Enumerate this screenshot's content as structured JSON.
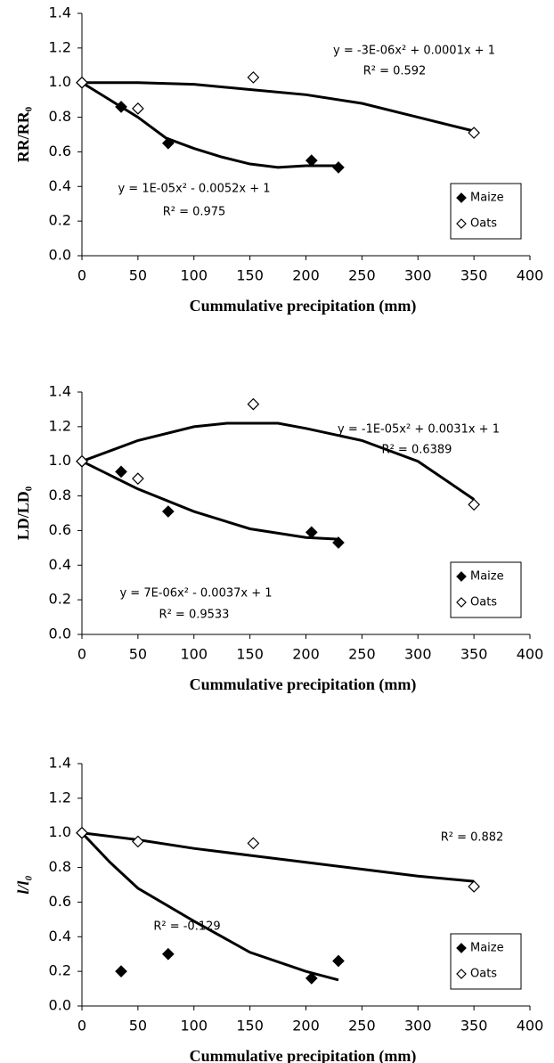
{
  "chart_data": [
    {
      "type": "scatter",
      "ylabel": "RR/RR₀",
      "xlabel": "Cummulative precipitation (mm)",
      "xlim": [
        0,
        400
      ],
      "ylim": [
        0,
        1.4
      ],
      "xticks": [
        0,
        50,
        100,
        150,
        200,
        250,
        300,
        350,
        400
      ],
      "yticks": [
        {
          "value": 0,
          "label": "0.0"
        },
        0.2,
        0.4,
        0.6,
        0.8,
        {
          "value": 1,
          "label": "1.0"
        },
        1.2,
        1.4
      ],
      "legend": "lower right",
      "annotations": [
        "y = -3E-06x² + 0.0001x + 1",
        "R² = 0.592",
        "y = 1E-05x² - 0.0052x + 1",
        "R² = 0.975"
      ],
      "series": [
        {
          "name": "Maize",
          "color": "#000000",
          "marker": "filled-diamond",
          "x": [
            0,
            35,
            77,
            205,
            229
          ],
          "values": [
            1.0,
            0.86,
            0.65,
            0.55,
            0.51
          ],
          "trend": {
            "x": [
              0,
              25,
              50,
              75,
              100,
              125,
              150,
              175,
              200,
              229
            ],
            "y": [
              1.0,
              0.9,
              0.8,
              0.68,
              0.62,
              0.57,
              0.53,
              0.51,
              0.52,
              0.52
            ]
          }
        },
        {
          "name": "Oats",
          "color": "#000000",
          "marker": "open-diamond",
          "x": [
            0,
            50,
            153,
            350
          ],
          "values": [
            1.0,
            0.85,
            1.03,
            0.71
          ],
          "trend": {
            "x": [
              0,
              50,
              100,
              150,
              200,
              250,
              300,
              350
            ],
            "y": [
              1.0,
              1.0,
              0.99,
              0.96,
              0.93,
              0.88,
              0.8,
              0.72
            ]
          }
        }
      ]
    },
    {
      "type": "scatter",
      "ylabel": "LD/LD₀",
      "xlabel": "Cummulative precipitation (mm)",
      "xlim": [
        0,
        400
      ],
      "ylim": [
        0,
        1.4
      ],
      "xticks": [
        0,
        50,
        100,
        150,
        200,
        250,
        300,
        350,
        400
      ],
      "yticks": [
        {
          "value": 0,
          "label": "0.0"
        },
        0.2,
        0.4,
        0.6,
        0.8,
        {
          "value": 1,
          "label": "1.0"
        },
        1.2,
        1.4
      ],
      "legend": "lower right",
      "annotations": [
        "y = -1E-05x² + 0.0031x + 1",
        "R² = 0.6389",
        "y = 7E-06x² - 0.0037x + 1",
        "R² = 0.9533"
      ],
      "series": [
        {
          "name": "Maize",
          "color": "#000000",
          "marker": "filled-diamond",
          "x": [
            0,
            35,
            77,
            205,
            229
          ],
          "values": [
            1.0,
            0.94,
            0.71,
            0.59,
            0.53
          ],
          "trend": {
            "x": [
              0,
              50,
              100,
              150,
              200,
              229
            ],
            "y": [
              1.0,
              0.84,
              0.71,
              0.61,
              0.56,
              0.55
            ]
          }
        },
        {
          "name": "Oats",
          "color": "#000000",
          "marker": "open-diamond",
          "x": [
            0,
            50,
            153,
            350
          ],
          "values": [
            1.0,
            0.9,
            1.33,
            0.75
          ],
          "trend": {
            "x": [
              0,
              25,
              50,
              100,
              130,
              175,
              200,
              250,
              300,
              350
            ],
            "y": [
              1.0,
              1.06,
              1.12,
              1.2,
              1.22,
              1.22,
              1.19,
              1.12,
              1.0,
              0.78
            ]
          }
        }
      ]
    },
    {
      "type": "scatter",
      "ylabel": "l/l₀",
      "xlabel": "Cummulative precipitation (mm)",
      "xlim": [
        0,
        400
      ],
      "ylim": [
        0,
        1.4
      ],
      "xticks": [
        0,
        50,
        100,
        150,
        200,
        250,
        300,
        350,
        400
      ],
      "yticks": [
        {
          "value": 0,
          "label": "0.0"
        },
        0.2,
        0.4,
        0.6,
        0.8,
        {
          "value": 1,
          "label": "1.0"
        },
        1.2,
        1.4
      ],
      "legend": "lower right",
      "annotations": [
        "R² = 0.882",
        "R² = -0.129"
      ],
      "series": [
        {
          "name": "Maize",
          "color": "#000000",
          "marker": "filled-diamond",
          "x": [
            0,
            35,
            77,
            205,
            229
          ],
          "values": [
            1.0,
            0.2,
            0.3,
            0.16,
            0.26
          ],
          "trend": {
            "x": [
              0,
              25,
              50,
              100,
              150,
              200,
              229
            ],
            "y": [
              1.0,
              0.83,
              0.68,
              0.49,
              0.31,
              0.2,
              0.15
            ]
          }
        },
        {
          "name": "Oats",
          "color": "#000000",
          "marker": "open-diamond",
          "x": [
            0,
            50,
            153,
            350
          ],
          "values": [
            1.0,
            0.95,
            0.94,
            0.69
          ],
          "trend": {
            "x": [
              0,
              50,
              100,
              150,
              200,
              250,
              300,
              350
            ],
            "y": [
              1.0,
              0.96,
              0.91,
              0.87,
              0.83,
              0.79,
              0.75,
              0.72
            ]
          }
        }
      ]
    }
  ]
}
